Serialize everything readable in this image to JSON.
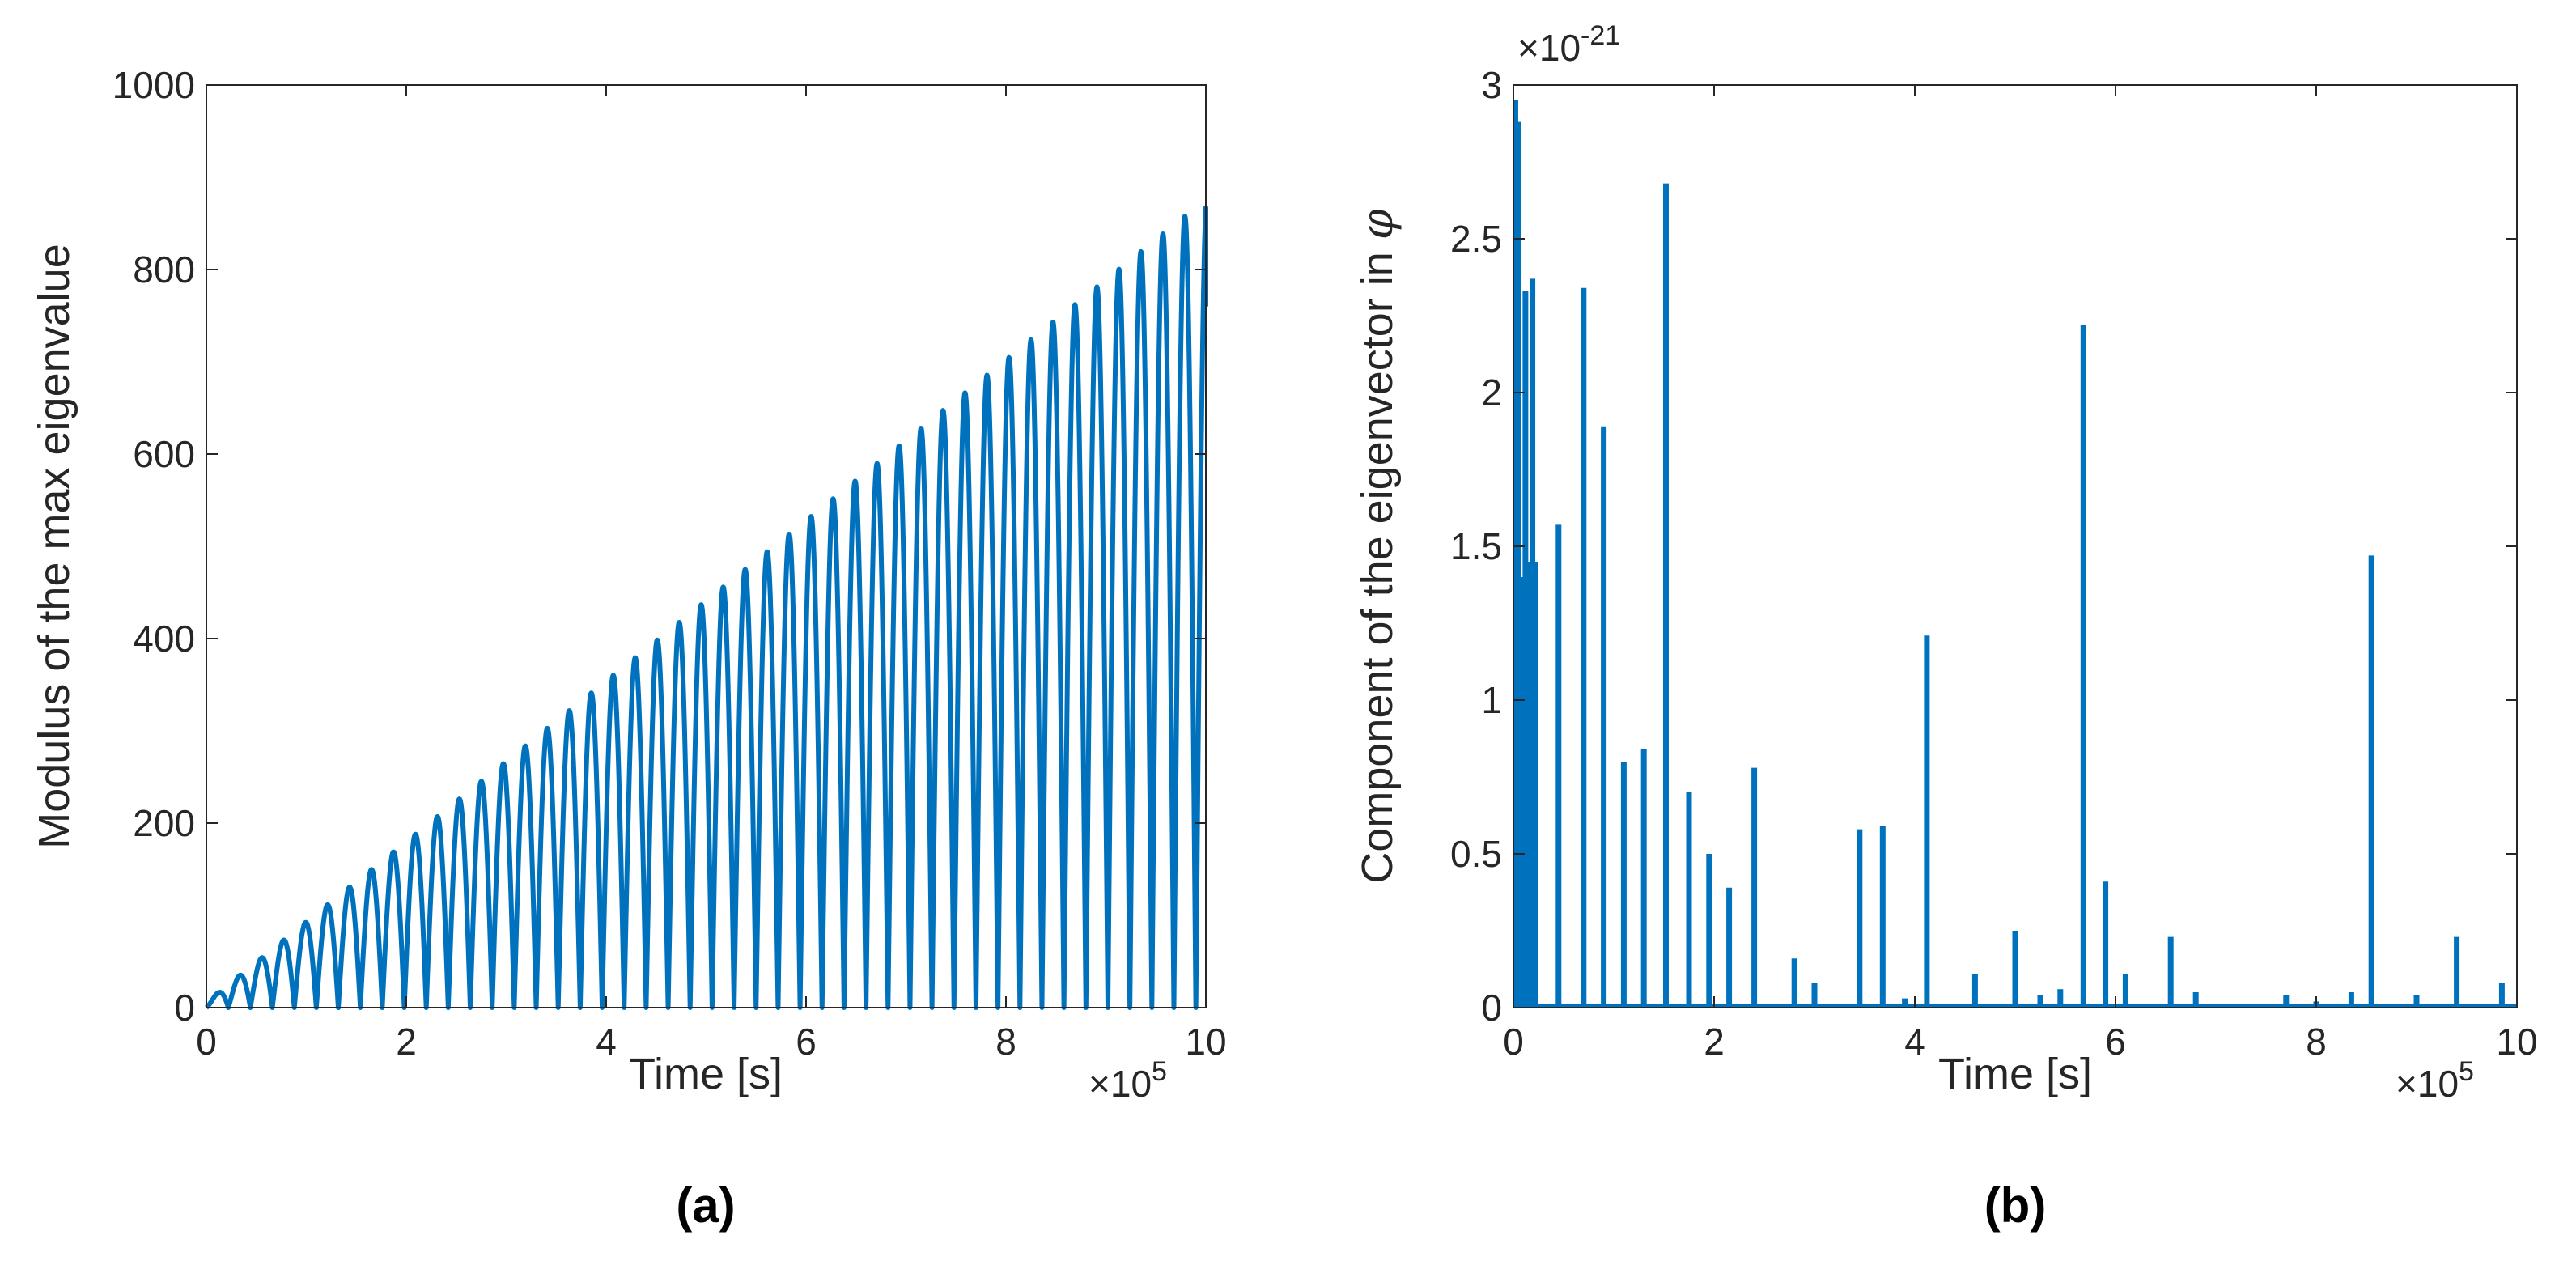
{
  "colors": {
    "series": "#0072BD",
    "axis": "#262626",
    "background": "#ffffff"
  },
  "chart_data": [
    {
      "id": "a",
      "type": "line",
      "caption": "(a)",
      "xlabel": "Time [s]",
      "ylabel": "Modulus of the max eigenvalue",
      "xlim": [
        0,
        10
      ],
      "ylim": [
        0,
        1000
      ],
      "x_multiplier": {
        "base": "×10",
        "exponent": "5"
      },
      "xticks": [
        0,
        2,
        4,
        6,
        8,
        10
      ],
      "xtick_labels": [
        "0",
        "2",
        "4",
        "6",
        "8",
        "10"
      ],
      "yticks": [
        0,
        200,
        400,
        600,
        800,
        1000
      ],
      "ytick_labels": [
        "0",
        "200",
        "400",
        "600",
        "800",
        "1000"
      ],
      "description": "Oscillating |sin| envelope with linearly increasing peaks",
      "series": [
        {
          "name": "max eigenvalue modulus",
          "oscillation_period": 0.22,
          "envelope": {
            "x": [
              0,
              10
            ],
            "y": [
              0,
              870
            ]
          },
          "end_value": {
            "x": 10,
            "y": 760
          }
        }
      ]
    },
    {
      "id": "b",
      "type": "bar",
      "caption": "(b)",
      "xlabel": "Time [s]",
      "ylabel_prefix": "Component of the eigenvector in ",
      "ylabel_symbol": "φ",
      "xlim": [
        0,
        10
      ],
      "ylim": [
        0,
        3
      ],
      "x_multiplier": {
        "base": "×10",
        "exponent": "5"
      },
      "y_multiplier": {
        "base": "×10",
        "exponent": "-21"
      },
      "xticks": [
        0,
        2,
        4,
        6,
        8,
        10
      ],
      "xtick_labels": [
        "0",
        "2",
        "4",
        "6",
        "8",
        "10"
      ],
      "yticks": [
        0,
        0.5,
        1,
        1.5,
        2,
        2.5,
        3
      ],
      "ytick_labels": [
        "0",
        "0.5",
        "1",
        "1.5",
        "2",
        "2.5",
        "3"
      ],
      "spikes": {
        "x": [
          0.02,
          0.05,
          0.08,
          0.12,
          0.15,
          0.19,
          0.22,
          0.45,
          0.7,
          0.9,
          1.1,
          1.3,
          1.52,
          1.75,
          1.95,
          2.15,
          2.4,
          2.8,
          3.0,
          3.45,
          3.68,
          3.9,
          4.12,
          4.6,
          5.0,
          5.25,
          5.45,
          5.68,
          5.9,
          6.1,
          6.55,
          6.8,
          7.7,
          8.0,
          8.35,
          8.55,
          9.0,
          9.4,
          9.85
        ],
        "y": [
          2.95,
          2.88,
          1.4,
          2.33,
          1.45,
          2.37,
          1.45,
          1.57,
          2.34,
          1.89,
          0.8,
          0.84,
          2.68,
          0.7,
          0.5,
          0.39,
          0.78,
          0.16,
          0.08,
          0.58,
          0.59,
          0.03,
          1.21,
          0.11,
          0.25,
          0.04,
          0.06,
          2.22,
          0.41,
          0.11,
          0.23,
          0.05,
          0.04,
          0.02,
          0.05,
          1.47,
          0.04,
          0.23,
          0.08
        ]
      }
    }
  ]
}
